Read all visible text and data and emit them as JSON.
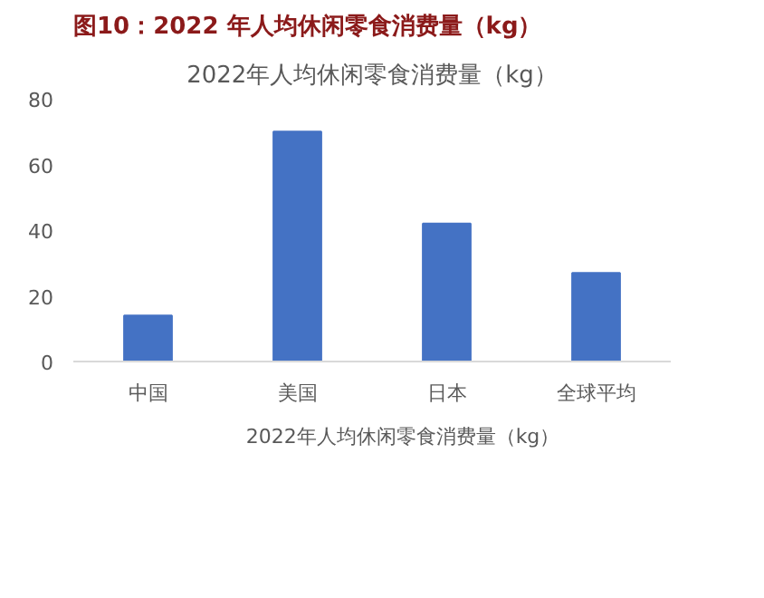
{
  "chart_data": {
    "type": "bar",
    "title": "图10：2022 年人均休闲零食消费量（kg）",
    "subtitle": "2022年人均休闲零食消费量（kg）",
    "categories": [
      "中国",
      "美国",
      "日本",
      "全球平均"
    ],
    "series": [
      {
        "name": "2022年人均休闲零食消费量（kg）",
        "color": "#4472c4",
        "values": [
          14,
          70,
          42,
          27
        ]
      }
    ],
    "ylim": [
      0,
      80
    ],
    "yticks": [
      0,
      20,
      40,
      60,
      80
    ],
    "grid": false,
    "legend": "bottom"
  }
}
